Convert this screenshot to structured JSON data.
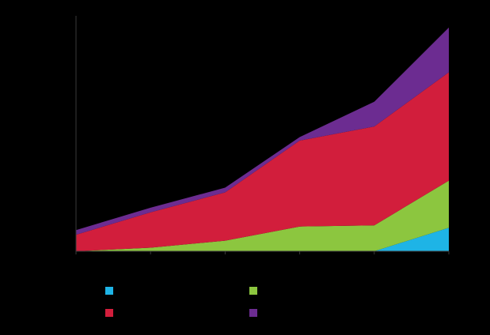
{
  "chart_data": {
    "type": "area",
    "stacked": true,
    "title": "",
    "xlabel": "",
    "ylabel": "",
    "x": [
      1,
      2,
      3,
      4,
      5,
      6
    ],
    "ylim": [
      0,
      100
    ],
    "grid": false,
    "legend_position": "bottom",
    "series": [
      {
        "color": "#1EB4E6",
        "values": [
          0,
          0,
          0,
          0,
          0,
          10
        ]
      },
      {
        "color": "#8CC63F",
        "values": [
          0,
          1.5,
          4.5,
          10.5,
          11,
          20
        ]
      },
      {
        "color": "#D21E3C",
        "values": [
          7,
          15,
          20.5,
          36.5,
          42,
          46
        ]
      },
      {
        "color": "#6C2C91",
        "values": [
          2,
          2,
          2,
          1.5,
          10.5,
          19
        ]
      }
    ]
  }
}
